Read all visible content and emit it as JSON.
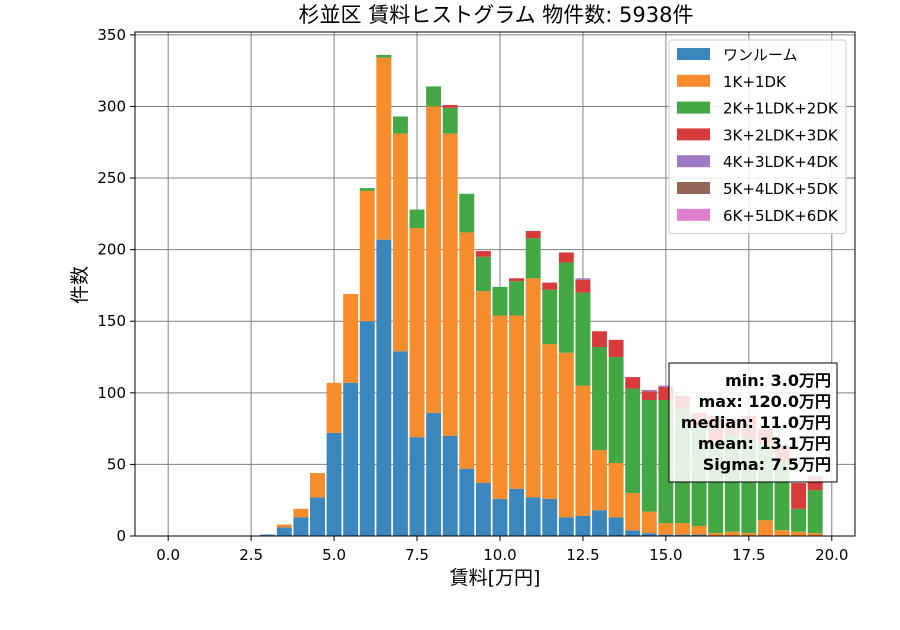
{
  "chart_data": {
    "type": "bar",
    "stacked": true,
    "title": "杉並区 賃料ヒストグラム  物件数: 5938件",
    "xlabel": "賃料[万円]",
    "ylabel": "件数",
    "xlim": [
      -1,
      20.7
    ],
    "ylim": [
      0,
      352
    ],
    "xticks": [
      "0.0",
      "2.5",
      "5.0",
      "7.5",
      "10.0",
      "12.5",
      "15.0",
      "17.5",
      "20.0"
    ],
    "xtick_values": [
      0,
      2.5,
      5,
      7.5,
      10,
      12.5,
      15,
      17.5,
      20
    ],
    "yticks": [
      "0",
      "50",
      "100",
      "150",
      "200",
      "250",
      "300",
      "350"
    ],
    "ytick_values": [
      0,
      50,
      100,
      150,
      200,
      250,
      300,
      350
    ],
    "grid": true,
    "legend_position": "top-right",
    "bin_width": 0.5,
    "x": [
      3.0,
      3.5,
      4.0,
      4.5,
      5.0,
      5.5,
      6.0,
      6.5,
      7.0,
      7.5,
      8.0,
      8.5,
      9.0,
      9.5,
      10.0,
      10.5,
      11.0,
      11.5,
      12.0,
      12.5,
      13.0,
      13.5,
      14.0,
      14.5,
      15.0,
      15.5,
      16.0,
      16.5,
      17.0,
      17.5,
      18.0,
      18.5,
      19.0,
      19.5
    ],
    "series": [
      {
        "name": "ワンルーム",
        "color": "#3a86bd",
        "values": [
          1,
          6,
          13,
          27,
          72,
          107,
          150,
          207,
          129,
          69,
          86,
          70,
          47,
          37,
          26,
          33,
          27,
          26,
          13,
          14,
          18,
          13,
          4,
          2,
          1,
          1,
          1,
          0,
          0,
          0,
          0,
          0,
          0,
          0
        ]
      },
      {
        "name": "1K+1DK",
        "color": "#f68c2b",
        "values": [
          0,
          2,
          6,
          17,
          35,
          62,
          91,
          127,
          152,
          146,
          214,
          211,
          165,
          134,
          128,
          121,
          153,
          108,
          115,
          91,
          42,
          38,
          26,
          15,
          8,
          8,
          6,
          2,
          3,
          2,
          11,
          4,
          3,
          2
        ]
      },
      {
        "name": "2K+1LDK+2DK",
        "color": "#43a843",
        "values": [
          0,
          0,
          0,
          0,
          0,
          0,
          2,
          2,
          12,
          13,
          14,
          18,
          27,
          24,
          20,
          24,
          28,
          38,
          63,
          65,
          72,
          74,
          73,
          78,
          86,
          80,
          70,
          64,
          68,
          66,
          53,
          48,
          16,
          30
        ]
      },
      {
        "name": "3K+2LDK+3DK",
        "color": "#d73b3b",
        "values": [
          0,
          0,
          0,
          0,
          0,
          0,
          0,
          0,
          0,
          0,
          0,
          2,
          0,
          4,
          0,
          2,
          5,
          5,
          7,
          9,
          11,
          12,
          8,
          6,
          9,
          9,
          9,
          18,
          11,
          16,
          11,
          11,
          18,
          9
        ]
      },
      {
        "name": "4K+3LDK+4DK",
        "color": "#9c7bc4",
        "values": [
          0,
          0,
          0,
          0,
          0,
          0,
          0,
          0,
          0,
          0,
          0,
          0,
          0,
          0,
          0,
          0,
          0,
          0,
          0,
          1,
          0,
          0,
          0,
          1,
          1,
          0,
          0,
          0,
          0,
          0,
          0,
          1,
          0,
          1
        ]
      },
      {
        "name": "5K+4LDK+5DK",
        "color": "#946459",
        "values": [
          0,
          0,
          0,
          0,
          0,
          0,
          0,
          0,
          0,
          0,
          0,
          0,
          0,
          0,
          0,
          0,
          0,
          0,
          0,
          0,
          0,
          0,
          0,
          0,
          0,
          0,
          0,
          0,
          0,
          0,
          0,
          0,
          0,
          0
        ]
      },
      {
        "name": "6K+5LDK+6DK",
        "color": "#e07fcf",
        "values": [
          0,
          0,
          0,
          0,
          0,
          0,
          0,
          0,
          0,
          0,
          0,
          0,
          0,
          0,
          0,
          0,
          0,
          0,
          0,
          0,
          0,
          0,
          0,
          0,
          0,
          0,
          0,
          0,
          0,
          0,
          0,
          0,
          0,
          0
        ]
      }
    ],
    "annotation": [
      "min: 3.0万円",
      "max: 120.0万円",
      "median: 11.0万円",
      "mean: 13.1万円",
      "Sigma: 7.5万円"
    ]
  }
}
